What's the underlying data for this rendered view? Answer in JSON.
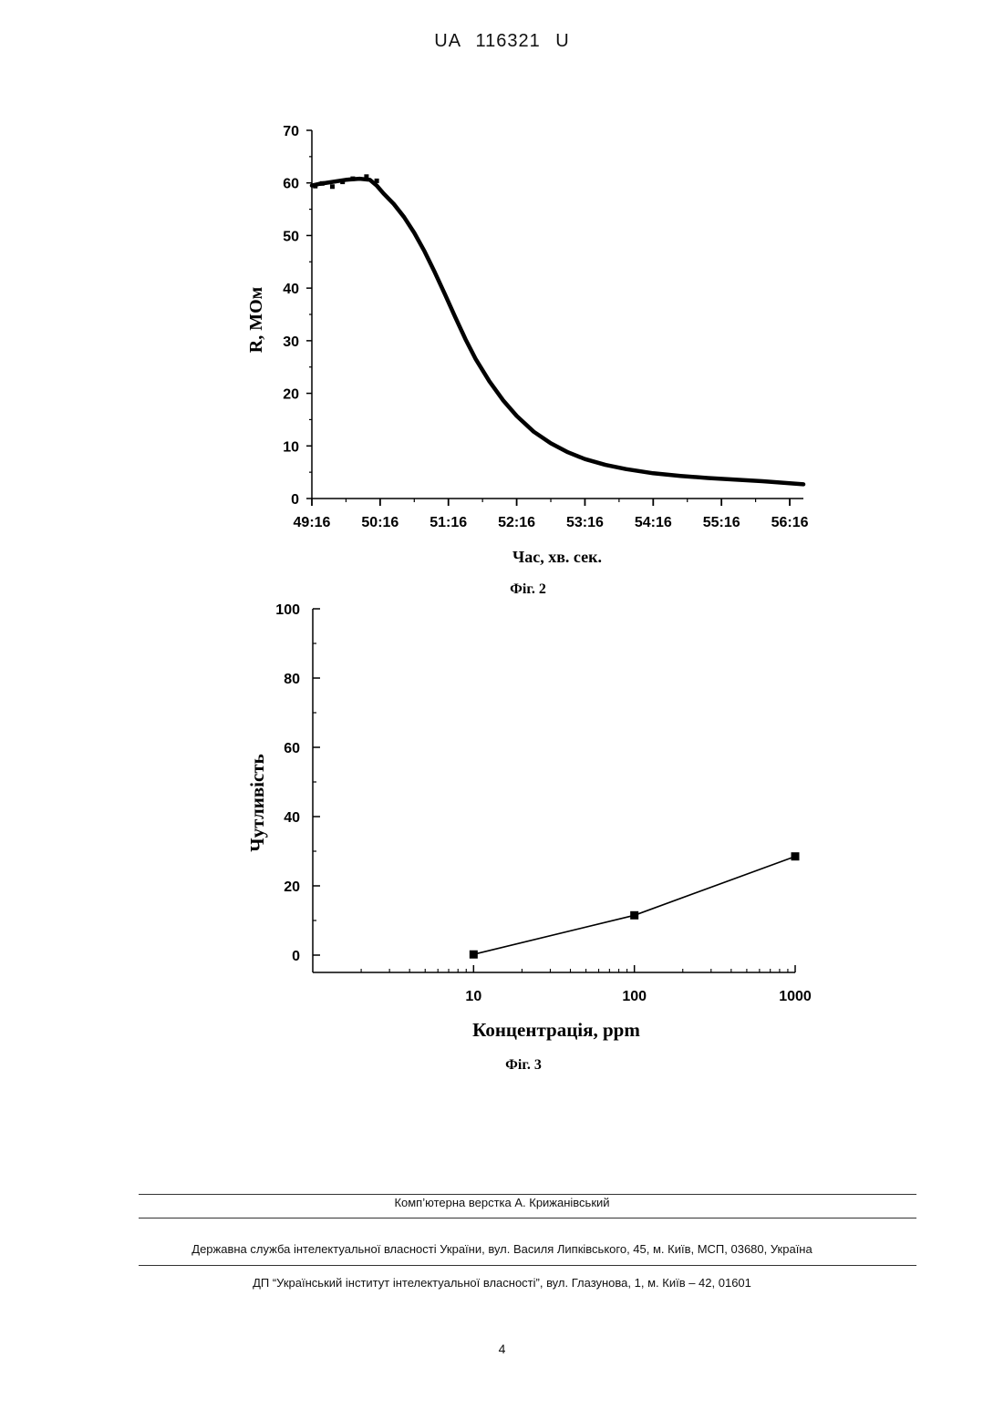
{
  "header": {
    "doc_id": "UA   116321   U"
  },
  "fig2": {
    "caption": "Фіг. 2",
    "chart_data": {
      "type": "line",
      "ylabel": "R, МОм",
      "xlabel": "Час, хв. сек.",
      "ylim": [
        0,
        70
      ],
      "xlim": [
        0,
        7.2
      ],
      "yticks": [
        "0",
        "10",
        "20",
        "30",
        "40",
        "50",
        "60",
        "70"
      ],
      "xticks": [
        "49:16",
        "50:16",
        "51:16",
        "52:16",
        "53:16",
        "54:16",
        "55:16",
        "56:16"
      ],
      "series": [
        {
          "x": [
            0,
            0.1,
            0.3,
            0.5,
            0.7,
            0.85,
            0.95,
            1.05,
            1.2,
            1.35,
            1.5,
            1.65,
            1.8,
            1.95,
            2.1,
            2.25,
            2.4,
            2.6,
            2.8,
            3.0,
            3.25,
            3.5,
            3.75,
            4.0,
            4.3,
            4.6,
            5.0,
            5.4,
            5.8,
            6.2,
            6.6,
            7.0,
            7.2
          ],
          "y": [
            59.5,
            59.8,
            60.2,
            60.6,
            60.8,
            60.6,
            59.5,
            58.0,
            56.0,
            53.5,
            50.5,
            47.0,
            43.0,
            38.8,
            34.5,
            30.3,
            26.5,
            22.3,
            18.7,
            15.7,
            12.7,
            10.5,
            8.8,
            7.5,
            6.4,
            5.6,
            4.8,
            4.3,
            3.9,
            3.6,
            3.3,
            2.9,
            2.7
          ]
        }
      ]
    }
  },
  "fig3": {
    "caption": "Фіг. 3",
    "chart_data": {
      "type": "scatter",
      "ylabel": "Чутливість",
      "xlabel": "Концентрація, ppm",
      "xscale": "log",
      "xlim": [
        1,
        1000
      ],
      "ylim": [
        -5,
        100
      ],
      "yticks": [
        "0",
        "20",
        "40",
        "60",
        "80",
        "100"
      ],
      "xticks": [
        "10",
        "100",
        "1000"
      ],
      "series": [
        {
          "x": [
            10,
            100,
            1000
          ],
          "y": [
            0.2,
            11.5,
            28.5
          ]
        }
      ]
    }
  },
  "footer": {
    "layout_credit": "Комп’ютерна верстка А. Крижанівський",
    "agency": "Державна служба інтелектуальної власності України, вул. Василя Липківського, 45, м. Київ, МСП, 03680, Україна",
    "institute": "ДП “Український інститут інтелектуальної власності”, вул. Глазунова, 1, м. Київ – 42, 01601"
  },
  "page_number": "4"
}
